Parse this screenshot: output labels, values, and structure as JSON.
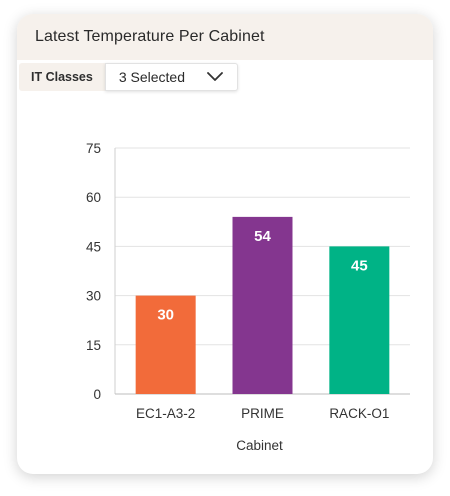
{
  "card": {
    "title": "Latest Temperature Per Cabinet"
  },
  "filter": {
    "label": "IT Classes",
    "value": "3 Selected",
    "icon": "chevron-down-icon"
  },
  "chart_data": {
    "type": "bar",
    "title": "",
    "xlabel": "Cabinet",
    "ylabel": "",
    "categories": [
      "EC1-A3-2",
      "PRIME",
      "RACK-O1"
    ],
    "values": [
      30,
      54,
      45
    ],
    "data_labels": [
      "30",
      "54",
      "45"
    ],
    "colors": [
      "#f26b3a",
      "#84368f",
      "#00b386"
    ],
    "ylim": [
      0,
      75
    ],
    "yticks": [
      0,
      15,
      30,
      45,
      60,
      75
    ],
    "grid": true,
    "legend": "none"
  }
}
